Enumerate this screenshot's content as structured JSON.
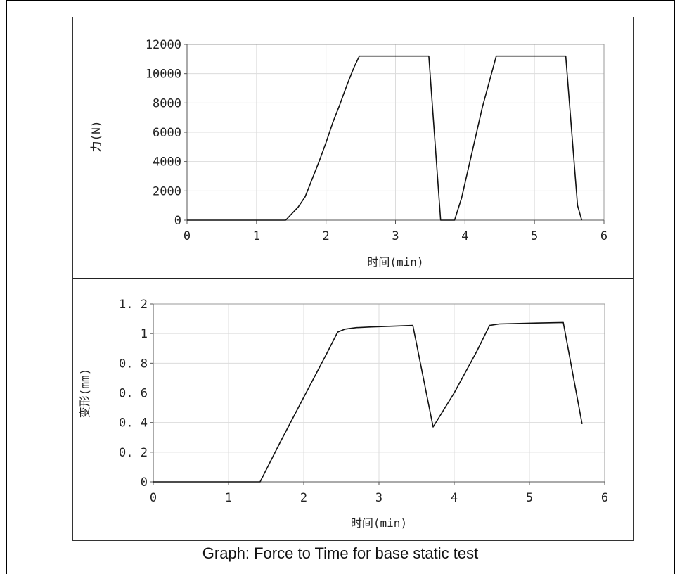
{
  "caption": "Graph: Force to Time for base static test",
  "chart_data": [
    {
      "type": "line",
      "xlabel": "时间(min)",
      "ylabel": "力(N)",
      "xlim": [
        0,
        6
      ],
      "ylim": [
        0,
        12000
      ],
      "xticks": [
        0,
        1,
        2,
        3,
        4,
        5,
        6
      ],
      "yticks": [
        0,
        2000,
        4000,
        6000,
        8000,
        10000,
        12000
      ],
      "grid": true,
      "series": [
        {
          "x": [
            0,
            1.42,
            1.6,
            1.7,
            1.8,
            1.9,
            2.0,
            2.1,
            2.2,
            2.3,
            2.4,
            2.48,
            3.48,
            3.65,
            3.85,
            3.95,
            4.1,
            4.25,
            4.45,
            5.45,
            5.62,
            5.68
          ],
          "y": [
            0,
            0,
            900,
            1600,
            2800,
            4000,
            5300,
            6700,
            7900,
            9200,
            10400,
            11200,
            11200,
            0,
            0,
            1500,
            4600,
            7700,
            11200,
            11200,
            1000,
            0
          ]
        }
      ]
    },
    {
      "type": "line",
      "xlabel": "时间(min)",
      "ylabel": "变形(mm)",
      "xlim": [
        0,
        6
      ],
      "ylim": [
        0,
        1.2
      ],
      "xticks": [
        0,
        1,
        2,
        3,
        4,
        5,
        6
      ],
      "yticks": [
        0,
        0.2,
        0.4,
        0.6,
        0.8,
        1,
        1.2
      ],
      "yticklabels": [
        "0",
        "0. 2",
        "0. 4",
        "0. 6",
        "0. 8",
        "1",
        "1. 2"
      ],
      "grid": true,
      "series": [
        {
          "x": [
            0,
            1.42,
            1.7,
            2.0,
            2.3,
            2.45,
            2.55,
            2.7,
            2.9,
            3.2,
            3.45,
            3.72,
            4.0,
            4.3,
            4.47,
            4.6,
            5.0,
            5.45,
            5.7
          ],
          "y": [
            0,
            0,
            0.28,
            0.57,
            0.86,
            1.01,
            1.03,
            1.04,
            1.045,
            1.05,
            1.055,
            0.37,
            0.6,
            0.88,
            1.055,
            1.065,
            1.07,
            1.075,
            0.39
          ]
        }
      ]
    }
  ]
}
